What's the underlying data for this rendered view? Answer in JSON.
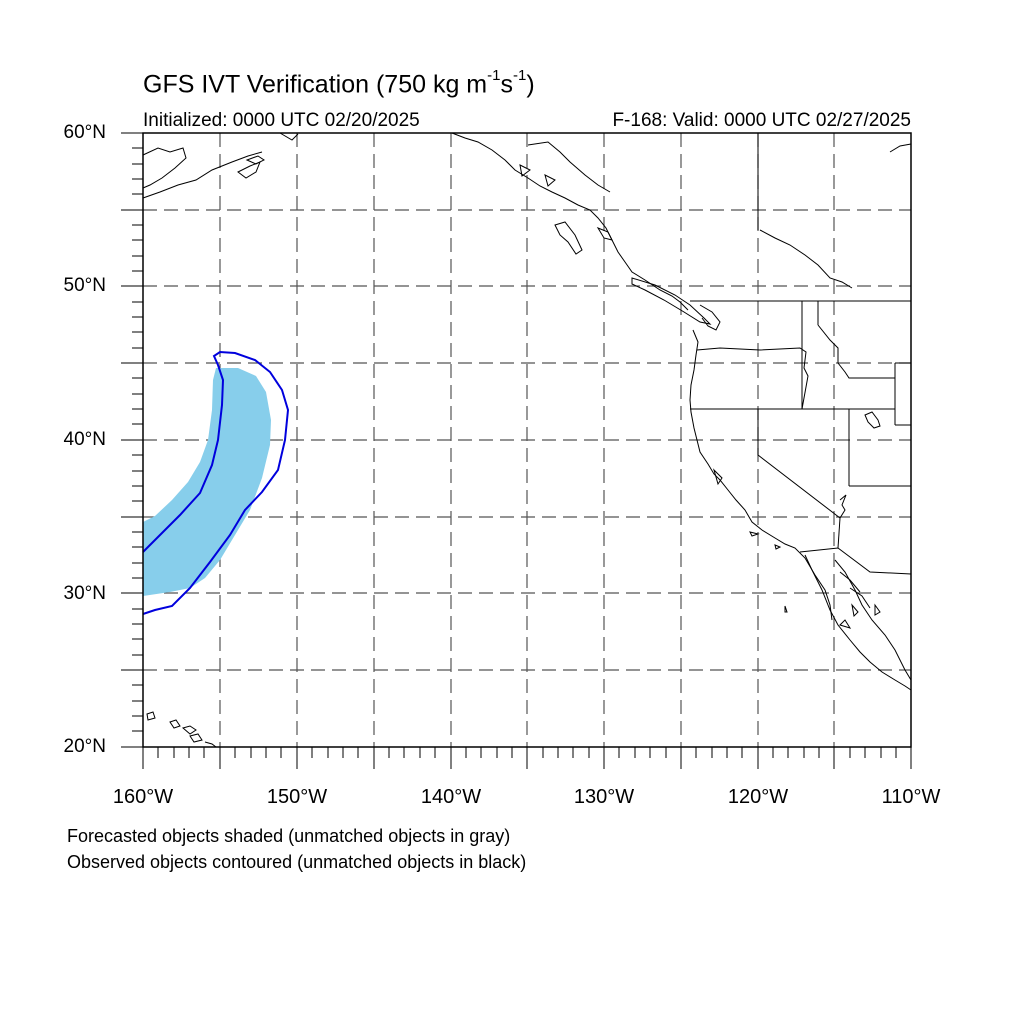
{
  "title_prefix": "GFS IVT Verification (750 kg m",
  "title_exp1": "-1",
  "title_mid": "s",
  "title_exp2": "-1",
  "title_suffix": ")",
  "initialized": "Initialized: 0000 UTC 02/20/2025",
  "valid": "F-168: Valid: 0000 UTC 02/27/2025",
  "map": {
    "lon_range": [
      -160,
      -110
    ],
    "lat_range": [
      20,
      60
    ],
    "grid": "dashed, every 5 degrees",
    "lat_labels": [
      "60°N",
      "50°N",
      "40°N",
      "30°N",
      "20°N"
    ],
    "lon_labels": [
      "160°W",
      "150°W",
      "140°W",
      "130°W",
      "120°W",
      "110°W"
    ],
    "forecast_object_color": "#87ceeb",
    "observed_contour_color": "#0000dd"
  },
  "footnote_1": "Forecasted objects shaded (unmatched objects in gray)",
  "footnote_2": "Observed objects contoured (unmatched objects in black)"
}
